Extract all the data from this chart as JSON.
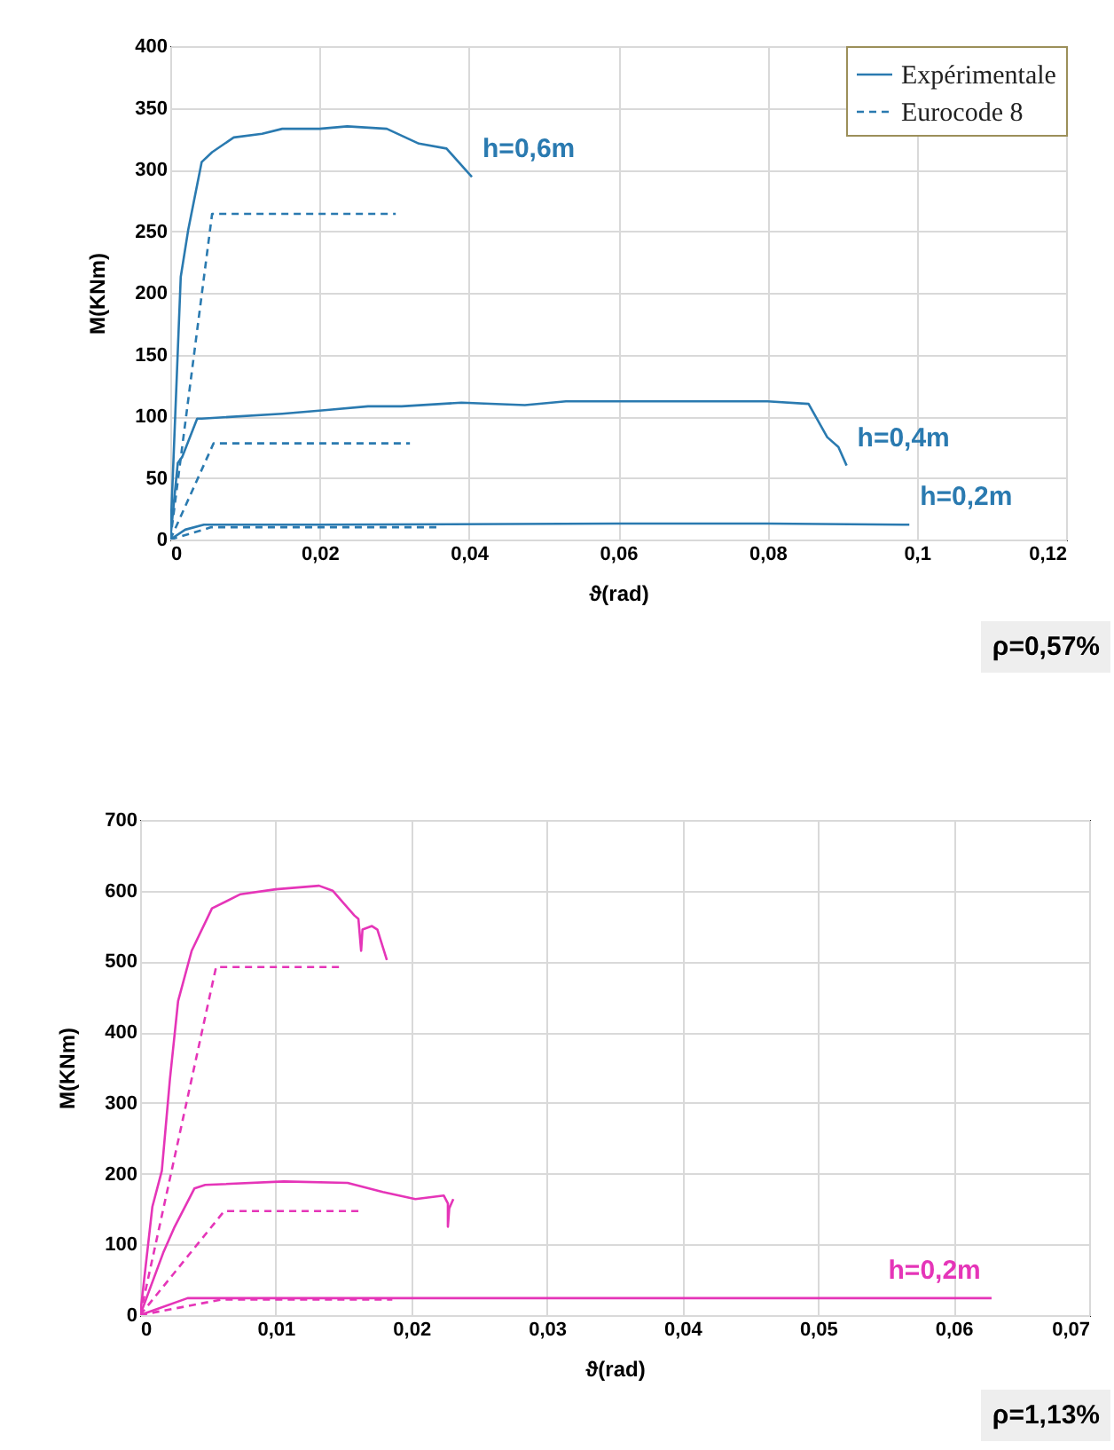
{
  "chart_data": [
    {
      "type": "line",
      "xlabel": "ϑ(rad)",
      "ylabel": "M(KNm)",
      "legend": "top right",
      "grid": true,
      "xlim": [
        0,
        0.12
      ],
      "xticks": [
        0,
        {
          "value": 0.02,
          "label": "0,02"
        },
        {
          "value": 0.04,
          "label": "0,04"
        },
        {
          "value": 0.06,
          "label": "0,06"
        },
        {
          "value": 0.08,
          "label": "0,08"
        },
        {
          "value": 0.1,
          "label": "0,1"
        },
        {
          "value": 0.12,
          "label": "0,12"
        }
      ],
      "ylim": [
        0,
        400
      ],
      "yticks": [
        0,
        50,
        100,
        150,
        200,
        250,
        300,
        350,
        400
      ],
      "series": [
        {
          "name": "Expérimentale",
          "color": "#2a7ab0",
          "line_style": "solid",
          "x": [
            0,
            0.0014,
            0.0024,
            0.0042,
            0.0056,
            0.0085,
            0.0123,
            0.015,
            0.02,
            0.0237,
            0.029,
            0.0333,
            0.037,
            0.0404
          ],
          "values": [
            0,
            213,
            251,
            306,
            314,
            326,
            329,
            333,
            333,
            335,
            333,
            321,
            317,
            294
          ]
        },
        {
          "name": "Eurocode 8",
          "color": "#2a7ab0",
          "line_style": "dashed",
          "x": [
            0,
            0.0056,
            0.0302
          ],
          "values": [
            0,
            264,
            264
          ]
        },
        {
          "color": "#2a7ab0",
          "line_style": "solid",
          "x": [
            0,
            0.001,
            0.0016,
            0.0036,
            0.0042,
            0.015,
            0.021,
            0.0265,
            0.031,
            0.039,
            0.0475,
            0.053,
            0.08,
            0.0855,
            0.088,
            0.0895,
            0.0906
          ],
          "values": [
            0,
            62,
            67,
            98,
            98,
            102,
            105,
            108,
            108,
            111,
            109,
            112,
            112,
            110,
            83,
            75,
            60
          ]
        },
        {
          "color": "#2a7ab0",
          "line_style": "dashed",
          "x": [
            0,
            0.0058,
            0.0321
          ],
          "values": [
            0,
            78,
            78
          ]
        },
        {
          "color": "#2a7ab0",
          "line_style": "solid",
          "x": [
            0,
            0.002,
            0.0045,
            0.02,
            0.06,
            0.08,
            0.099
          ],
          "values": [
            0,
            8,
            12,
            12,
            13,
            13,
            12
          ]
        },
        {
          "color": "#2a7ab0",
          "line_style": "dashed",
          "x": [
            0,
            0.0055,
            0.0361
          ],
          "values": [
            0,
            10,
            10
          ]
        }
      ],
      "annotations": [
        {
          "text": "h=0,6m",
          "x": 0.0404,
          "y": 294
        },
        {
          "text": "h=0,4m",
          "x": 0.0906,
          "y": 60
        },
        {
          "text": "h=0,2m",
          "x": 0.099,
          "y": 12
        },
        "ρ=0,57%"
      ]
    },
    {
      "type": "line",
      "xlabel": "ϑ(rad)",
      "ylabel": "M(KNm)",
      "grid": true,
      "xlim": [
        0,
        0.07
      ],
      "xticks": [
        0,
        {
          "value": 0.01,
          "label": "0,01"
        },
        {
          "value": 0.02,
          "label": "0,02"
        },
        {
          "value": 0.03,
          "label": "0,03"
        },
        {
          "value": 0.04,
          "label": "0,04"
        },
        {
          "value": 0.05,
          "label": "0,05"
        },
        {
          "value": 0.06,
          "label": "0,06"
        },
        {
          "value": 0.07,
          "label": "0,07"
        }
      ],
      "ylim": [
        0,
        700
      ],
      "yticks": [
        0,
        100,
        200,
        300,
        400,
        500,
        600,
        700
      ],
      "series": [
        {
          "color": "#e535b8",
          "line_style": "solid",
          "x": [
            0,
            0.0009,
            0.0016,
            0.0022,
            0.0028,
            0.0038,
            0.0053,
            0.0074,
            0.01,
            0.0132,
            0.0142,
            0.0158,
            0.0161,
            0.0163,
            0.0164,
            0.0171,
            0.0175,
            0.0182
          ],
          "values": [
            0,
            153,
            204,
            334,
            444,
            515,
            575,
            595,
            602,
            607,
            600,
            565,
            560,
            515,
            545,
            550,
            545,
            502
          ]
        },
        {
          "color": "#e535b8",
          "line_style": "dashed",
          "x": [
            0,
            0.0056,
            0.0148
          ],
          "values": [
            0,
            492,
            492
          ]
        },
        {
          "color": "#e535b8",
          "line_style": "solid",
          "x": [
            0,
            0.0017,
            0.0025,
            0.004,
            0.0048,
            0.0106,
            0.0153,
            0.0179,
            0.0203,
            0.0224,
            0.0227,
            0.0227,
            0.0228,
            0.0231
          ],
          "values": [
            0,
            88,
            123,
            179,
            184,
            189,
            187,
            174,
            164,
            169,
            158,
            125,
            151,
            164
          ]
        },
        {
          "color": "#e535b8",
          "line_style": "dashed",
          "x": [
            0,
            0.0062,
            0.0161
          ],
          "values": [
            0,
            147,
            147
          ]
        },
        {
          "color": "#e535b8",
          "line_style": "solid",
          "x": [
            0,
            0.0035,
            0.0628
          ],
          "values": [
            0,
            24,
            24
          ]
        },
        {
          "color": "#e535b8",
          "line_style": "dashed",
          "x": [
            0,
            0.006,
            0.0186
          ],
          "values": [
            0,
            22,
            22
          ]
        }
      ],
      "annotations": [
        {
          "text": "h=0,2m",
          "x": 0.0544,
          "y": 24
        },
        "ρ=1,13%"
      ]
    }
  ]
}
